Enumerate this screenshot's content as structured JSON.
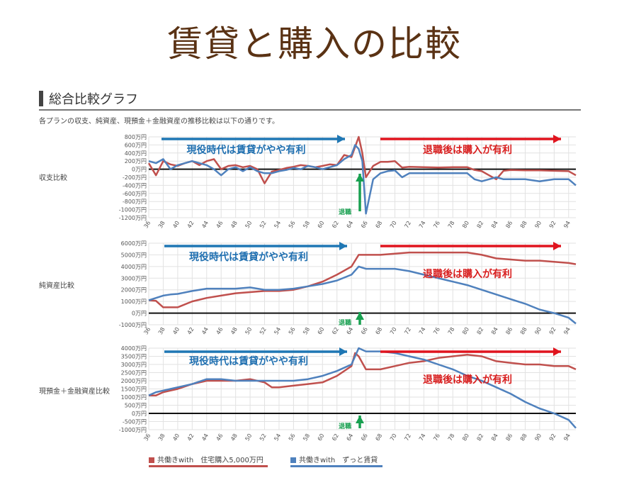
{
  "title": "賃貸と購入の比較",
  "section_title": "総合比較グラフ",
  "subtitle": "各プランの収支、純資産、現預金＋金融資産の推移比較は以下の通りです。",
  "colors": {
    "purchase": "#c0504d",
    "rent": "#4f81bd",
    "blue_arrow": "#1f77b4",
    "red_arrow": "#e0141e",
    "green_arrow": "#18a050",
    "blue_text": "#1f6fb0",
    "red_text": "#d81e1e"
  },
  "annotations": {
    "before": "現役時代は賃貸がやや有利",
    "after": "退職後は購入が有利",
    "retire": "退職"
  },
  "legend": [
    {
      "name": "共働きwith　住宅購入5,000万円",
      "color": "#c0504d"
    },
    {
      "name": "共働きwith　ずっと賃貸",
      "color": "#4f81bd"
    }
  ],
  "chart_data": [
    {
      "type": "line",
      "row_label": "収支比較",
      "x_ticks": [
        "36",
        "38",
        "40",
        "42",
        "44",
        "46",
        "48",
        "50",
        "52",
        "54",
        "56",
        "58",
        "60",
        "62",
        "64",
        "66",
        "68",
        "70",
        "72",
        "74",
        "76",
        "78",
        "80",
        "82",
        "84",
        "86",
        "88",
        "90",
        "92",
        "94"
      ],
      "y_ticks": [
        "800万円",
        "600万円",
        "400万円",
        "200万円",
        "0万円",
        "-200万円",
        "-400万円",
        "-600万円",
        "-800万円",
        "-1000万円",
        "-1200万円"
      ],
      "ylim": [
        -1200,
        800
      ],
      "xlim": [
        36,
        95
      ],
      "series": [
        {
          "name": "共働きwith　住宅購入5,000万円",
          "x": [
            36,
            37,
            38,
            39,
            40,
            41,
            42,
            43,
            44,
            45,
            46,
            47,
            48,
            49,
            50,
            51,
            52,
            53,
            54,
            55,
            56,
            57,
            58,
            59,
            60,
            61,
            62,
            63,
            64,
            64.5,
            65,
            65.5,
            66,
            67,
            68,
            69,
            70,
            71,
            72,
            74,
            76,
            78,
            80,
            81,
            82,
            83,
            84,
            85,
            86,
            88,
            90,
            92,
            94,
            95
          ],
          "values": [
            150,
            -150,
            200,
            120,
            80,
            150,
            200,
            100,
            200,
            250,
            0,
            80,
            100,
            50,
            80,
            0,
            -350,
            -60,
            -20,
            30,
            60,
            100,
            80,
            50,
            80,
            120,
            100,
            350,
            300,
            550,
            800,
            400,
            -200,
            80,
            180,
            180,
            200,
            40,
            60,
            50,
            40,
            50,
            50,
            -20,
            -50,
            -150,
            -250,
            -40,
            -20,
            -30,
            -30,
            -40,
            -50,
            -150
          ]
        },
        {
          "name": "共働きwith　ずっと賃貸",
          "x": [
            36,
            37,
            38,
            39,
            40,
            41,
            42,
            43,
            44,
            45,
            46,
            47,
            48,
            49,
            50,
            51,
            52,
            53,
            54,
            55,
            56,
            57,
            58,
            59,
            60,
            61,
            62,
            63,
            64,
            64.5,
            65,
            65.5,
            66,
            67,
            68,
            69,
            70,
            71,
            72,
            74,
            76,
            78,
            80,
            81,
            82,
            83,
            84,
            85,
            86,
            88,
            90,
            92,
            94,
            95
          ],
          "values": [
            200,
            150,
            250,
            0,
            100,
            150,
            200,
            150,
            100,
            0,
            -150,
            0,
            50,
            -50,
            50,
            -50,
            -100,
            -100,
            -50,
            -20,
            30,
            0,
            80,
            50,
            0,
            50,
            100,
            250,
            350,
            600,
            500,
            200,
            -1100,
            -250,
            -100,
            -50,
            -30,
            -200,
            -100,
            -100,
            -100,
            -100,
            -100,
            -250,
            -300,
            -250,
            -200,
            -250,
            -250,
            -250,
            -300,
            -250,
            -250,
            -400
          ]
        }
      ]
    },
    {
      "type": "line",
      "row_label": "純資産比較",
      "x_ticks": [
        "36",
        "38",
        "40",
        "42",
        "44",
        "46",
        "48",
        "50",
        "52",
        "54",
        "56",
        "58",
        "60",
        "62",
        "64",
        "66",
        "68",
        "70",
        "72",
        "74",
        "76",
        "78",
        "80",
        "82",
        "84",
        "86",
        "88",
        "90",
        "92",
        "94"
      ],
      "y_ticks": [
        "6000万円",
        "5000万円",
        "4000万円",
        "3000万円",
        "2000万円",
        "1000万円",
        "0万円",
        "-1000万円"
      ],
      "ylim": [
        -1000,
        6000
      ],
      "xlim": [
        36,
        95
      ],
      "series": [
        {
          "name": "共働きwith　住宅購入5,000万円",
          "x": [
            36,
            37,
            38,
            39,
            40,
            42,
            44,
            46,
            48,
            50,
            52,
            54,
            56,
            58,
            60,
            62,
            64,
            65,
            66,
            68,
            70,
            72,
            74,
            76,
            78,
            80,
            82,
            84,
            86,
            88,
            90,
            92,
            94,
            95
          ],
          "values": [
            1100,
            1050,
            500,
            500,
            500,
            1000,
            1300,
            1500,
            1700,
            1800,
            1900,
            1900,
            2000,
            2300,
            2700,
            3300,
            4000,
            5000,
            5000,
            5000,
            5100,
            5200,
            5200,
            5200,
            5200,
            5200,
            5000,
            4700,
            4600,
            4500,
            4500,
            4400,
            4300,
            4200
          ]
        },
        {
          "name": "共働きwith　ずっと賃貸",
          "x": [
            36,
            37,
            38,
            39,
            40,
            42,
            44,
            46,
            48,
            50,
            52,
            54,
            56,
            58,
            60,
            62,
            64,
            65,
            66,
            68,
            70,
            72,
            74,
            76,
            78,
            80,
            82,
            84,
            86,
            88,
            90,
            92,
            94,
            95
          ],
          "values": [
            1100,
            1300,
            1500,
            1600,
            1650,
            1900,
            2100,
            2100,
            2100,
            2200,
            2000,
            2000,
            2100,
            2300,
            2500,
            2800,
            3300,
            4000,
            3800,
            3800,
            3800,
            3600,
            3300,
            3000,
            2700,
            2400,
            2000,
            1600,
            1200,
            800,
            300,
            0,
            -400,
            -900
          ]
        }
      ]
    },
    {
      "type": "line",
      "row_label": "現預金＋金融資産比較",
      "x_ticks": [
        "36",
        "38",
        "40",
        "42",
        "44",
        "46",
        "48",
        "50",
        "52",
        "54",
        "56",
        "58",
        "60",
        "62",
        "64",
        "66",
        "68",
        "70",
        "72",
        "74",
        "76",
        "78",
        "80",
        "82",
        "84",
        "86",
        "88",
        "90",
        "92",
        "94"
      ],
      "y_ticks": [
        "4000万円",
        "3500万円",
        "3000万円",
        "2500万円",
        "2000万円",
        "1500万円",
        "1000万円",
        "500万円",
        "0万円",
        "-500万円",
        "-1000万円"
      ],
      "ylim": [
        -1000,
        4000
      ],
      "xlim": [
        36,
        95
      ],
      "series": [
        {
          "name": "共働きwith　住宅購入5,000万円",
          "x": [
            36,
            37,
            38,
            39,
            40,
            42,
            44,
            46,
            48,
            50,
            52,
            53,
            54,
            56,
            58,
            60,
            62,
            64,
            64.5,
            65,
            66,
            68,
            70,
            72,
            74,
            76,
            78,
            80,
            82,
            84,
            86,
            88,
            90,
            92,
            94,
            95
          ],
          "values": [
            1100,
            1100,
            1300,
            1400,
            1500,
            1800,
            2000,
            2000,
            2000,
            2100,
            1900,
            1600,
            1600,
            1700,
            1800,
            1900,
            2300,
            2900,
            3700,
            3500,
            2700,
            2700,
            2900,
            3100,
            3200,
            3400,
            3500,
            3600,
            3500,
            3200,
            3100,
            3000,
            3000,
            2900,
            2900,
            2700
          ]
        },
        {
          "name": "共働きwith　ずっと賃貸",
          "x": [
            36,
            37,
            38,
            39,
            40,
            42,
            44,
            46,
            48,
            50,
            52,
            53,
            54,
            56,
            58,
            60,
            62,
            64,
            64.5,
            65,
            66,
            68,
            70,
            72,
            74,
            76,
            78,
            80,
            82,
            84,
            86,
            88,
            90,
            92,
            94,
            95
          ],
          "values": [
            1100,
            1300,
            1400,
            1500,
            1600,
            1800,
            2100,
            2100,
            2000,
            2000,
            2000,
            2000,
            2000,
            2000,
            2100,
            2300,
            2600,
            3000,
            3500,
            4000,
            3800,
            3800,
            3700,
            3500,
            3300,
            3000,
            2700,
            2300,
            2000,
            1600,
            1200,
            700,
            300,
            0,
            -400,
            -900
          ]
        }
      ]
    }
  ]
}
